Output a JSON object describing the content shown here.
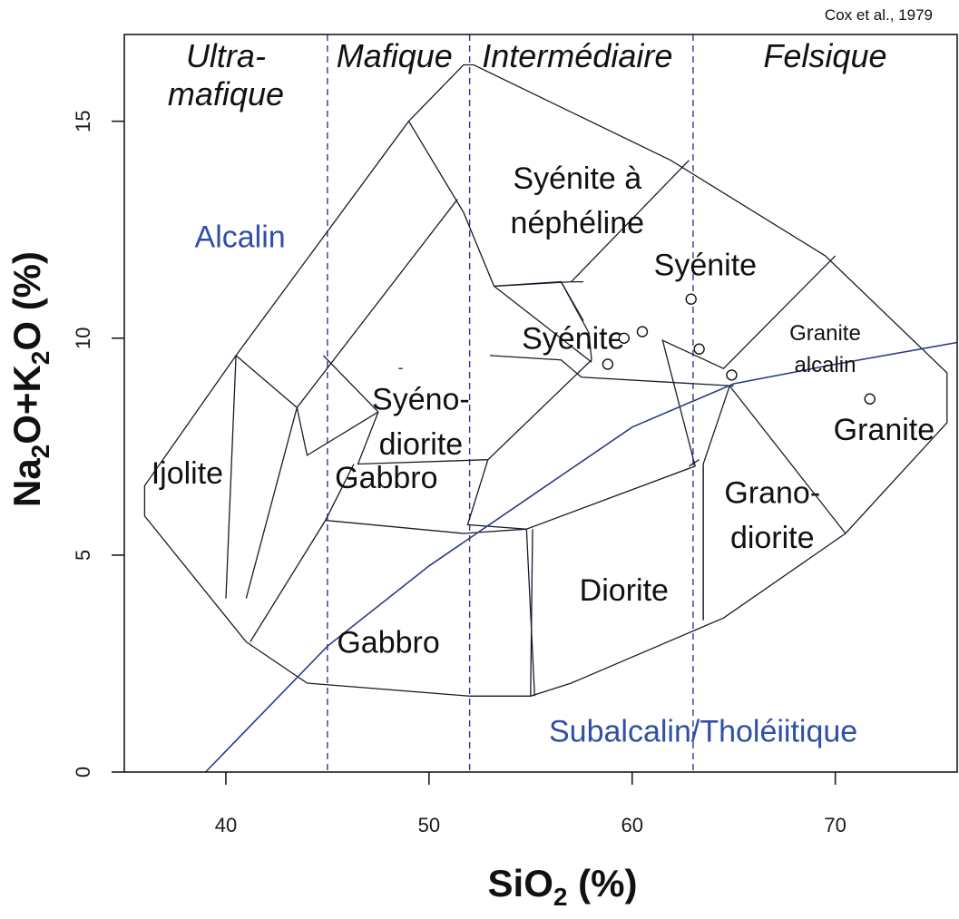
{
  "source_note": "Cox et al., 1979",
  "colors": {
    "boundary": "#2b3a8c",
    "series_text": "#2f4fa8",
    "lines": "#1a1a2e"
  },
  "chart_data": {
    "type": "scatter",
    "xlabel_main": "SiO",
    "xlabel_sub": "2",
    "xlabel_tail": " (%)",
    "ylabel_parts": [
      "Na",
      "2",
      "O+K",
      "2",
      "O (%)"
    ],
    "xlim": [
      35,
      76
    ],
    "ylim": [
      0,
      17
    ],
    "xticks": [
      40,
      50,
      60,
      70
    ],
    "yticks": [
      0,
      5,
      10,
      15
    ],
    "grid": false,
    "categories": [
      {
        "lines": [
          "Ultra-",
          "mafique"
        ],
        "x": 40
      },
      {
        "lines": [
          "Mafique"
        ],
        "x": 48.3
      },
      {
        "lines": [
          "Intermédiaire"
        ],
        "x": 57.3
      },
      {
        "lines": [
          "Felsique"
        ],
        "x": 69.5
      }
    ],
    "class_dividers": [
      45,
      52,
      63
    ],
    "series_labels": [
      {
        "text": "Alcalin",
        "x": 40.7,
        "y": 12.1
      },
      {
        "text": "Subalcalin/Tholéiitique",
        "x": 63.5,
        "y": 0.7
      }
    ],
    "boundary_line": [
      [
        39,
        0
      ],
      [
        45,
        2.9
      ],
      [
        50,
        4.75
      ],
      [
        55,
        6.35
      ],
      [
        60,
        7.95
      ],
      [
        65,
        8.95
      ],
      [
        70,
        9.4
      ],
      [
        76,
        9.9
      ]
    ],
    "fields": [
      {
        "lines": [
          "Syénite à",
          "néphéline"
        ],
        "x": 57.3,
        "y": 13.45,
        "size": 34
      },
      {
        "lines": [
          "Syénite"
        ],
        "x": 63.6,
        "y": 11.45,
        "size": 34
      },
      {
        "lines": [
          "Granite",
          "alcalin"
        ],
        "x": 69.5,
        "y": 9.95,
        "size": 24
      },
      {
        "lines": [
          "Syénite"
        ],
        "x": 57.1,
        "y": 9.75,
        "size": 34
      },
      {
        "lines": [
          "Syéno-",
          "diorite"
        ],
        "x": 49.6,
        "y": 8.35,
        "size": 34
      },
      {
        "lines": [
          "Granite"
        ],
        "x": 72.4,
        "y": 7.65,
        "size": 34
      },
      {
        "lines": [
          "Ijolite"
        ],
        "x": 38.1,
        "y": 6.65,
        "size": 34
      },
      {
        "lines": [
          "Gabbro"
        ],
        "x": 47.9,
        "y": 6.55,
        "size": 34
      },
      {
        "lines": [
          "Grano-",
          "diorite"
        ],
        "x": 66.9,
        "y": 6.2,
        "size": 34
      },
      {
        "lines": [
          "Diorite"
        ],
        "x": 59.6,
        "y": 3.95,
        "size": 34
      },
      {
        "lines": [
          "Gabbro"
        ],
        "x": 48.0,
        "y": 2.75,
        "size": 34
      }
    ],
    "field_lines": [
      [
        [
          41,
          3
        ],
        [
          36,
          5.9
        ],
        [
          36,
          6.6
        ],
        [
          40.5,
          9.6
        ],
        [
          49,
          15
        ],
        [
          51.7,
          16.3
        ],
        [
          52.2,
          16.3
        ],
        [
          61.9,
          14.1
        ],
        [
          69.5,
          11.9
        ],
        [
          75.5,
          9.2
        ],
        [
          75.5,
          8.05
        ],
        [
          70.5,
          5.5
        ],
        [
          64.5,
          3.55
        ],
        [
          57,
          2.05
        ],
        [
          55,
          1.75
        ],
        [
          52,
          1.75
        ],
        [
          44,
          2.05
        ],
        [
          41,
          3
        ]
      ],
      [
        [
          40,
          4
        ],
        [
          40.5,
          9.6
        ]
      ],
      [
        [
          40.5,
          9.6
        ],
        [
          43.5,
          8.4
        ]
      ],
      [
        [
          43.5,
          8.4
        ],
        [
          44,
          7.3
        ],
        [
          47.5,
          8.3
        ]
      ],
      [
        [
          41,
          4
        ],
        [
          43.5,
          8.4
        ],
        [
          51.4,
          13.2
        ]
      ],
      [
        [
          44.8,
          9.6
        ],
        [
          47.5,
          8.3
        ]
      ],
      [
        [
          47.5,
          8.3
        ],
        [
          46.5,
          7.1
        ],
        [
          52.9,
          7.2
        ],
        [
          58,
          9.5
        ],
        [
          57.9,
          10
        ]
      ],
      [
        [
          49,
          15
        ],
        [
          51.7,
          12.9
        ],
        [
          53.2,
          11.2
        ],
        [
          56.5,
          11.3
        ],
        [
          57.6,
          10.4
        ]
      ],
      [
        [
          41.2,
          3
        ],
        [
          44.9,
          5.8
        ],
        [
          51.7,
          5.5
        ],
        [
          54.8,
          5.6
        ],
        [
          63.1,
          7.05
        ],
        [
          61.5,
          9.95
        ],
        [
          64.5,
          9.3
        ],
        [
          70,
          11.9
        ]
      ],
      [
        [
          46.3,
          7.1
        ],
        [
          44.9,
          5.8
        ]
      ],
      [
        [
          52.9,
          7.2
        ],
        [
          51.9,
          5.7
        ],
        [
          54.8,
          5.6
        ],
        [
          55.2,
          1.75
        ]
      ],
      [
        [
          53.2,
          11.2
        ],
        [
          58,
          9.45
        ]
      ],
      [
        [
          57.8,
          10.1
        ],
        [
          57.9,
          10
        ]
      ],
      [
        [
          56.5,
          11.3
        ],
        [
          57.9,
          10.1
        ]
      ],
      [
        [
          48.7,
          9.3
        ],
        [
          48.5,
          9.3
        ]
      ],
      [
        [
          53.3,
          11.2
        ],
        [
          57,
          11.3
        ],
        [
          57.6,
          11.3
        ]
      ],
      [
        [
          57,
          11.3
        ],
        [
          62.8,
          14.1
        ]
      ],
      [
        [
          53,
          9.6
        ],
        [
          56.5,
          9.5
        ],
        [
          57.5,
          9.1
        ],
        [
          65,
          8.9
        ]
      ],
      [
        [
          64.8,
          8.9
        ],
        [
          70.5,
          5.5
        ]
      ],
      [
        [
          64.8,
          8.9
        ],
        [
          63.5,
          7.1
        ],
        [
          63.5,
          3.5
        ]
      ],
      [
        [
          63.3,
          7.2
        ],
        [
          62.8,
          7.05
        ]
      ],
      [
        [
          55,
          1.75
        ],
        [
          55.1,
          5.6
        ]
      ],
      [
        [
          63.5,
          7.05
        ],
        [
          63.5,
          3.5
        ]
      ]
    ],
    "samples": [
      [
        58.8,
        9.4
      ],
      [
        59.6,
        10.0
      ],
      [
        60.5,
        10.15
      ],
      [
        62.9,
        10.9
      ],
      [
        63.3,
        9.75
      ],
      [
        64.9,
        9.15
      ],
      [
        71.7,
        8.6
      ]
    ]
  }
}
